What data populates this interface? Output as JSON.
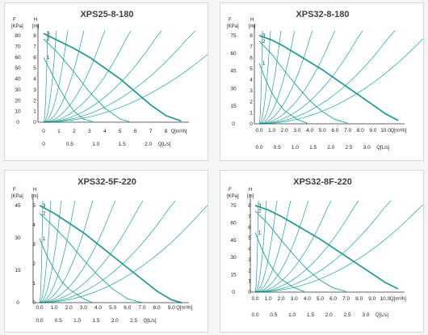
{
  "colors": {
    "curve": "#1aa39e",
    "thick": "#17948f",
    "axis": "#333333",
    "text": "#222222",
    "title": "#3d4043",
    "background": "#f4f5f5"
  },
  "chart_data": [
    {
      "type": "line",
      "title": "XPS25-8-180",
      "left_label_top": "F",
      "left_label_unit": "[KPa]",
      "right_label_top": "H",
      "right_label_unit": "[m]",
      "h_ticks": [
        "0",
        "1",
        "2",
        "3",
        "4",
        "5",
        "6",
        "7",
        "8"
      ],
      "h_range": [
        0,
        8
      ],
      "kpa_ticks": [
        "0",
        "10",
        "20",
        "30",
        "40",
        "50",
        "60",
        "70",
        "80"
      ],
      "q1_label": "Q[m³/h]",
      "q1_ticks": [
        "0",
        "1",
        "2",
        "3",
        "4",
        "5",
        "6",
        "7",
        "8"
      ],
      "q1_range": [
        0,
        9.5
      ],
      "q2_label": "Q[L/s]",
      "q2_ticks": [
        "0",
        "0.5",
        "1.0",
        "1.5",
        "2.0"
      ],
      "curve_labels": [
        "3",
        "2",
        "1"
      ],
      "series": [
        {
          "label": "3",
          "x": [
            0,
            1,
            2,
            3,
            4,
            5,
            6,
            7,
            8,
            9
          ],
          "y": [
            8.2,
            7.5,
            6.8,
            6.0,
            5.0,
            4.0,
            2.8,
            1.6,
            0.6,
            0.1
          ]
        },
        {
          "label": "2",
          "x": [
            0,
            1,
            2,
            3,
            4,
            5,
            5.6
          ],
          "y": [
            7.7,
            6.3,
            4.6,
            2.8,
            1.3,
            0.3,
            0.05
          ]
        },
        {
          "label": "1",
          "x": [
            0,
            0.5,
            1,
            1.5,
            2,
            2.6,
            3.2
          ],
          "y": [
            6.0,
            4.6,
            3.2,
            2.0,
            1.0,
            0.3,
            0.05
          ]
        }
      ]
    },
    {
      "type": "line",
      "title": "XPS32-8-180",
      "left_label_top": "F",
      "left_label_unit": "[KPa]",
      "right_label_top": "H",
      "right_label_unit": "[m]",
      "h_ticks": [
        "0",
        "1",
        "2",
        "3",
        "4",
        "5",
        "6",
        "7",
        "8"
      ],
      "h_range": [
        0,
        8
      ],
      "kpa_ticks": [
        "0",
        "15",
        "30",
        "45",
        "60",
        "75"
      ],
      "q1_label": "Q[m³/h]",
      "q1_ticks": [
        "0.0",
        "1.0",
        "2.0",
        "3.0",
        "4.0",
        "5.0",
        "6.0",
        "7.0",
        "8.0",
        "9.0",
        "10.0"
      ],
      "q1_range": [
        0,
        11.5
      ],
      "q2_label": "Q[L/s]",
      "q2_ticks": [
        "0.0",
        "0.5",
        "1.0",
        "1.5",
        "2.0",
        "2.5",
        "3.0"
      ],
      "curve_labels": [
        "3",
        "2",
        "1"
      ],
      "series": [
        {
          "label": "3",
          "x": [
            0,
            1,
            2,
            3,
            4,
            5,
            6,
            7,
            8,
            9,
            10,
            11
          ],
          "y": [
            8.0,
            7.6,
            7.0,
            6.3,
            5.6,
            4.9,
            4.1,
            3.3,
            2.5,
            1.7,
            0.9,
            0.3
          ]
        },
        {
          "label": "2",
          "x": [
            0,
            1,
            2,
            3,
            4,
            5,
            6,
            7
          ],
          "y": [
            7.5,
            6.3,
            4.8,
            3.4,
            2.1,
            1.1,
            0.4,
            0.05
          ]
        },
        {
          "label": "1",
          "x": [
            0,
            0.5,
            1,
            1.5,
            2,
            3,
            3.8
          ],
          "y": [
            5.5,
            4.0,
            2.8,
            1.9,
            1.2,
            0.4,
            0.05
          ]
        }
      ]
    },
    {
      "type": "line",
      "title": "XPS32-5F-220",
      "left_label_top": "F",
      "left_label_unit": "[KPa]",
      "right_label_top": "H",
      "right_label_unit": "[m]",
      "h_ticks": [
        "0",
        "1",
        "2",
        "3",
        "4",
        "5"
      ],
      "h_range": [
        0,
        5
      ],
      "kpa_ticks": [
        "0",
        "15",
        "30",
        "45"
      ],
      "q1_label": "Q[m³/h]",
      "q1_ticks": [
        "0.0",
        "1.0",
        "2.0",
        "3.0",
        "4.0",
        "5.0",
        "6.0",
        "7.0",
        "8.0",
        "9.0"
      ],
      "q1_range": [
        0,
        10.2
      ],
      "q2_label": "Q[L/s]",
      "q2_ticks": [
        "0.0",
        "0.5",
        "1.0",
        "1.5",
        "2.0",
        "2.5"
      ],
      "curve_labels": [
        "3",
        "2",
        "1"
      ],
      "series": [
        {
          "label": "3",
          "x": [
            0,
            1,
            2,
            3,
            4,
            5,
            6,
            7,
            8,
            9,
            9.7
          ],
          "y": [
            5.0,
            4.6,
            4.1,
            3.6,
            3.0,
            2.4,
            1.8,
            1.2,
            0.6,
            0.15,
            0
          ]
        },
        {
          "label": "2",
          "x": [
            0,
            1,
            2,
            3,
            4,
            5,
            6,
            7
          ],
          "y": [
            4.6,
            3.9,
            3.1,
            2.2,
            1.4,
            0.7,
            0.2,
            0
          ]
        },
        {
          "label": "1",
          "x": [
            0,
            0.5,
            1,
            1.5,
            2,
            3,
            3.6
          ],
          "y": [
            3.3,
            2.4,
            1.7,
            1.1,
            0.7,
            0.2,
            0
          ]
        }
      ]
    },
    {
      "type": "line",
      "title": "XPS32-8F-220",
      "left_label_top": "F",
      "left_label_unit": "[KPa]",
      "right_label_top": "H",
      "right_label_unit": "[m]",
      "h_ticks": [
        "0",
        "1",
        "2",
        "3",
        "4",
        "5",
        "6",
        "7",
        "8"
      ],
      "h_range": [
        0,
        8
      ],
      "kpa_ticks": [
        "0",
        "15",
        "30",
        "45",
        "60",
        "75"
      ],
      "q1_label": "Q[m³/h]",
      "q1_ticks": [
        "0.0",
        "1.0",
        "2.0",
        "3.0",
        "4.0",
        "5.0",
        "6.0",
        "7.0",
        "8.0",
        "9.0",
        "10.0"
      ],
      "q1_range": [
        0,
        11.5
      ],
      "q2_label": "Q[L/s]",
      "q2_ticks": [
        "0.0",
        "0.5",
        "1.0",
        "1.5",
        "2.0",
        "2.5",
        "3.0"
      ],
      "curve_labels": [
        "3",
        "2",
        "1"
      ],
      "series": [
        {
          "label": "3",
          "x": [
            0,
            1,
            2,
            3,
            4,
            5,
            6,
            7,
            8,
            9,
            10,
            11
          ],
          "y": [
            8.0,
            7.6,
            7.0,
            6.3,
            5.6,
            4.9,
            4.1,
            3.3,
            2.5,
            1.7,
            0.9,
            0.3
          ]
        },
        {
          "label": "2",
          "x": [
            0,
            1,
            2,
            3,
            4,
            5,
            6,
            7
          ],
          "y": [
            7.5,
            6.3,
            4.8,
            3.4,
            2.1,
            1.1,
            0.4,
            0.05
          ]
        },
        {
          "label": "1",
          "x": [
            0,
            0.5,
            1,
            1.5,
            2,
            3,
            3.8
          ],
          "y": [
            5.5,
            4.0,
            2.8,
            1.9,
            1.2,
            0.4,
            0.05
          ]
        }
      ]
    }
  ]
}
